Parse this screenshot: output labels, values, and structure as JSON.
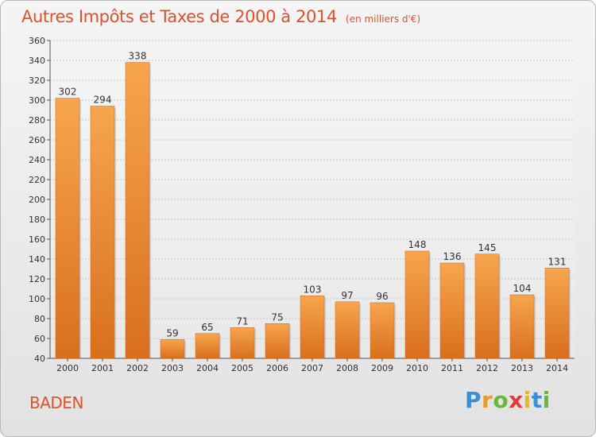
{
  "chart_data": {
    "type": "bar",
    "title": "Autres Impôts et Taxes de 2000 à 2014",
    "unit_label": "(en milliers d'€)",
    "categories": [
      "2000",
      "2001",
      "2002",
      "2003",
      "2004",
      "2005",
      "2006",
      "2007",
      "2008",
      "2009",
      "2010",
      "2011",
      "2012",
      "2013",
      "2014"
    ],
    "values": [
      302,
      294,
      338,
      59,
      65,
      71,
      75,
      103,
      97,
      96,
      148,
      136,
      145,
      104,
      131
    ],
    "ylim": [
      40,
      360
    ],
    "yticks": [
      40,
      60,
      80,
      100,
      120,
      140,
      160,
      180,
      200,
      220,
      240,
      260,
      280,
      300,
      320,
      340,
      360
    ],
    "grid": true,
    "bar_color_top": "#f7a64e",
    "bar_color_bottom": "#d96f1c"
  },
  "location_label": "BADEN",
  "brand": {
    "letters": [
      "P",
      "r",
      "o",
      "x",
      "i",
      "t",
      "i"
    ],
    "colors": [
      "#3a8fd6",
      "#e89a2a",
      "#66b83a",
      "#e03c3c",
      "#f0b41e",
      "#3a8fd6",
      "#66b83a"
    ]
  },
  "colors": {
    "accent": "#e0502a",
    "grid": "#c8c8c8"
  }
}
